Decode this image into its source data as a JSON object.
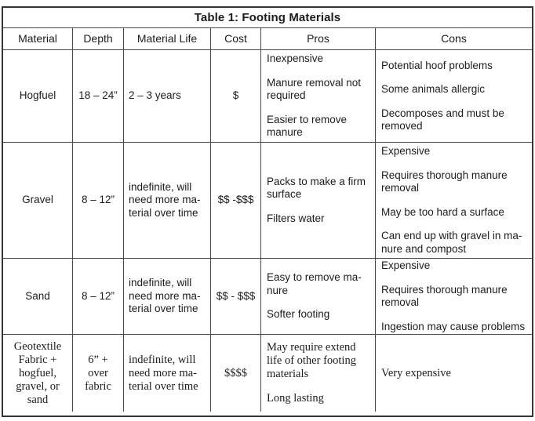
{
  "title": "Table 1: Footing Materials",
  "columns": {
    "material": "Material",
    "depth": "Depth",
    "life": "Material Life",
    "cost": "Cost",
    "pros": "Pros",
    "cons": "Cons"
  },
  "rows": [
    {
      "material": "Hogfuel",
      "depth": "18 – 24”",
      "life": "2 – 3 years",
      "cost": "$",
      "pros": [
        "Inexpensive",
        "Manure removal not\nrequired",
        "Easier to remove\nmanure"
      ],
      "cons": [
        "Potential hoof problems",
        "Some animals allergic",
        "Decomposes and must be\nremoved"
      ]
    },
    {
      "material": "Gravel",
      "depth": "8 – 12”",
      "life": "indefinite, will\nneed more ma-\nterial over time",
      "cost": "$$ -$$$",
      "pros": [
        "Packs to make a firm\nsurface",
        "Filters water"
      ],
      "cons": [
        "Expensive",
        "Requires thorough manure\nremoval",
        "May be too hard a surface",
        "Can end up with gravel in ma-\nnure and compost"
      ]
    },
    {
      "material": "Sand",
      "depth": "8 – 12”",
      "life": "indefinite, will\nneed more ma-\nterial over time",
      "cost": "$$ - $$$",
      "pros": [
        "Easy to remove ma-\nnure",
        "Softer footing"
      ],
      "cons": [
        "Expensive",
        "Requires thorough manure\nremoval",
        "Ingestion may cause problems"
      ]
    },
    {
      "material": "Geotextile\nFabric +\nhogfuel,\ngravel, or\nsand",
      "depth": "6” +\nover\nfabric",
      "life": "indefinite, will\nneed more ma-\nterial over time",
      "cost": "$$$$",
      "pros": [
        "May require extend\nlife of other footing\nmaterials",
        "Long lasting"
      ],
      "cons": [
        "Very expensive"
      ]
    }
  ]
}
